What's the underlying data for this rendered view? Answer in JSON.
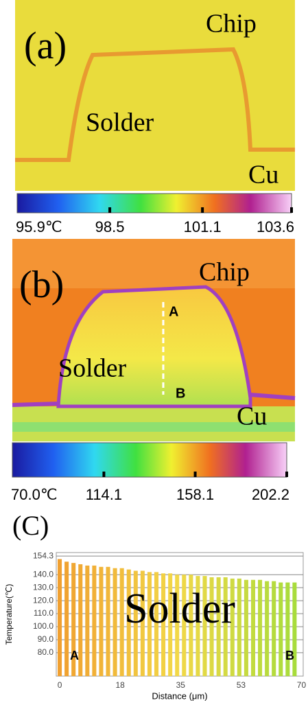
{
  "panel_a": {
    "label": "(a)",
    "chip": "Chip",
    "solder": "Solder",
    "cu": "Cu",
    "colorbar": {
      "lim": [
        95.9,
        103.6
      ],
      "ticks": [
        {
          "value": 95.9,
          "label": "95.9℃"
        },
        98.5,
        101.1,
        103.6
      ]
    }
  },
  "panel_b": {
    "label": "(b)",
    "chip": "Chip",
    "solder": "Solder",
    "cu": "Cu",
    "point_a": "A",
    "point_b": "B",
    "colorbar": {
      "lim": [
        70.0,
        202.2
      ],
      "ticks": [
        {
          "value": 70.0,
          "label": "70.0℃"
        },
        114.1,
        158.1,
        202.2
      ]
    }
  },
  "chart_data": {
    "type": "bar",
    "panel_label": "(C)",
    "annotation": "Solder",
    "start_label": "A",
    "end_label": "B",
    "x_label": "Distance (μm)",
    "y_label": "Temperature(℃)",
    "x": [
      0,
      2,
      4,
      6,
      8,
      10,
      12,
      14,
      16,
      18,
      20,
      22,
      24,
      26,
      28,
      30,
      32,
      34,
      36,
      38,
      40,
      42,
      44,
      46,
      48,
      50,
      52,
      54,
      56,
      58,
      60,
      62,
      64,
      66,
      68
    ],
    "values": [
      152,
      150,
      149,
      148,
      147,
      147,
      146,
      146,
      145,
      145,
      144,
      143,
      143,
      142,
      142,
      141,
      141,
      140,
      140,
      140,
      139,
      139,
      138,
      138,
      138,
      137,
      137,
      136,
      136,
      136,
      135,
      135,
      134,
      134,
      134
    ],
    "color_scale": [
      "#f0a030",
      "#f2d848",
      "#a8dc3c"
    ],
    "xlim": [
      -1,
      70.5
    ],
    "xticks": [
      0,
      {
        "value": 17.5,
        "label": "18"
      },
      35,
      {
        "value": 52.5,
        "label": "53"
      },
      70
    ],
    "ylim": [
      62,
      157
    ],
    "yticks": [
      154.3,
      {
        "value": 140,
        "label": "140.0"
      },
      {
        "value": 130,
        "label": "130.0"
      },
      {
        "value": 120,
        "label": "120.0"
      },
      {
        "value": 110,
        "label": "110.0"
      },
      {
        "value": 100,
        "label": "100.0"
      },
      {
        "value": 90,
        "label": "90.0"
      },
      {
        "value": 80,
        "label": "80.0"
      }
    ],
    "grid": true
  }
}
